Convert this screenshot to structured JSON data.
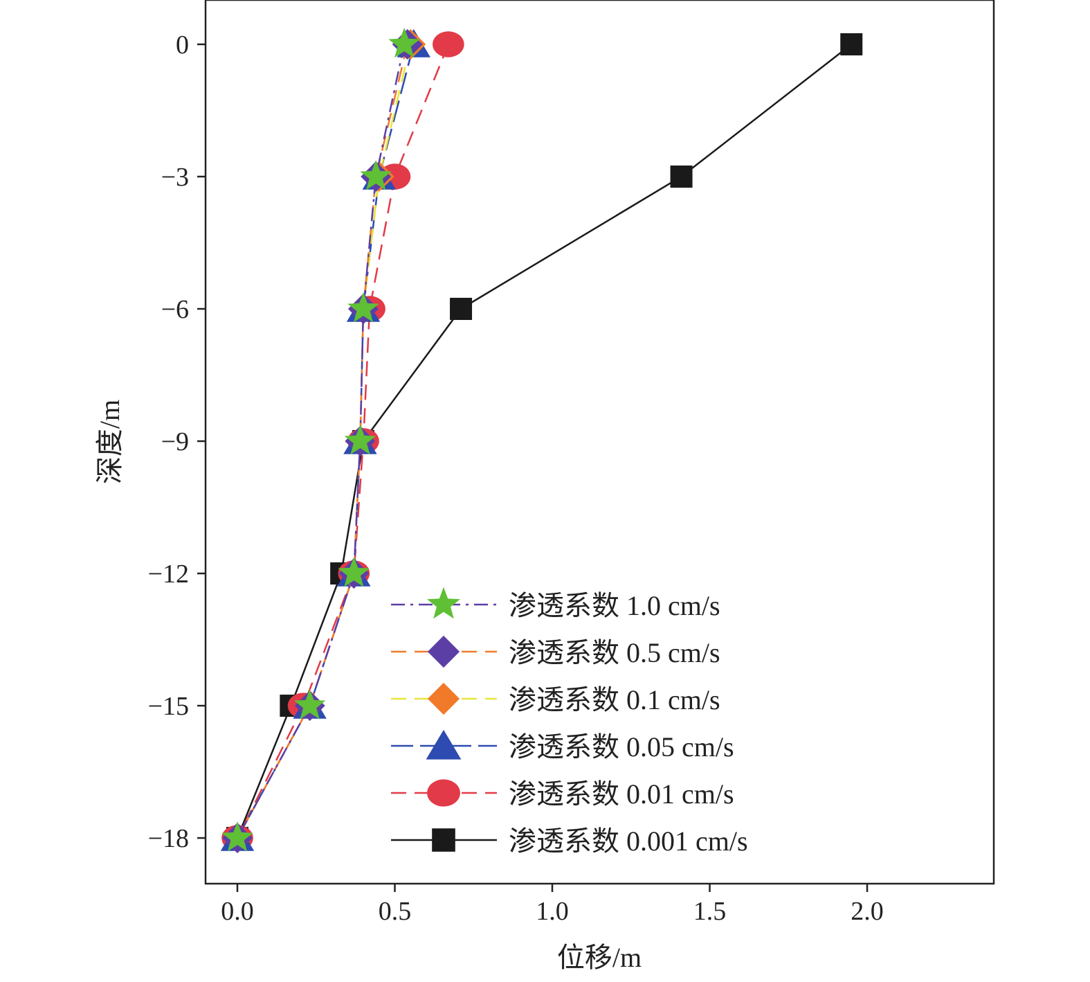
{
  "chart_data": {
    "type": "line",
    "xlabel": "位移/m",
    "ylabel": "深度/m",
    "xlim": [
      -0.1,
      2.4
    ],
    "ylim": [
      -19,
      1
    ],
    "xticks": [
      0.0,
      0.5,
      1.0,
      1.5,
      2.0
    ],
    "xtick_labels": [
      "0.0",
      "0.5",
      "1.0",
      "1.5",
      "2.0"
    ],
    "yticks": [
      0,
      -3,
      -6,
      -9,
      -12,
      -15,
      -18
    ],
    "ytick_labels": [
      "0",
      "−3",
      "−6",
      "−9",
      "−12",
      "−15",
      "−18"
    ],
    "grid": false,
    "legend_position": "lower-right",
    "y": [
      0,
      -3,
      -6,
      -9,
      -12,
      -15,
      -18
    ],
    "series": [
      {
        "name": "渗透系数 1.0 cm/s",
        "color": "#5b3fa5",
        "marker_color": "#5fbf35",
        "marker": "star",
        "dash": "dashdot",
        "x": [
          0.53,
          0.44,
          0.4,
          0.39,
          0.37,
          0.23,
          0.0
        ]
      },
      {
        "name": "渗透系数 0.5 cm/s",
        "color": "#f07a2a",
        "marker_color": "#5b3fa5",
        "marker": "diamond",
        "dash": "dash",
        "x": [
          0.54,
          0.44,
          0.4,
          0.39,
          0.37,
          0.23,
          0.0
        ]
      },
      {
        "name": "渗透系数 0.1 cm/s",
        "color": "#e6e63a",
        "marker_color": "#f07a2a",
        "marker": "diamond",
        "dash": "dash",
        "x": [
          0.55,
          0.45,
          0.4,
          0.39,
          0.37,
          0.23,
          0.0
        ]
      },
      {
        "name": "渗透系数 0.05 cm/s",
        "color": "#2d4bb0",
        "marker_color": "#2d4bb0",
        "marker": "triangle",
        "dash": "longdash",
        "x": [
          0.56,
          0.45,
          0.4,
          0.39,
          0.37,
          0.23,
          0.0
        ]
      },
      {
        "name": "渗透系数 0.01 cm/s",
        "color": "#e23a48",
        "marker_color": "#e23a48",
        "marker": "circle",
        "dash": "dash",
        "x": [
          0.67,
          0.5,
          0.42,
          0.4,
          0.37,
          0.21,
          0.0
        ]
      },
      {
        "name": "渗透系数 0.001 cm/s",
        "color": "#1a1a1a",
        "marker_color": "#1a1a1a",
        "marker": "square",
        "dash": "solid",
        "x": [
          1.95,
          1.41,
          0.71,
          0.4,
          0.33,
          0.17,
          0.0
        ]
      }
    ]
  }
}
